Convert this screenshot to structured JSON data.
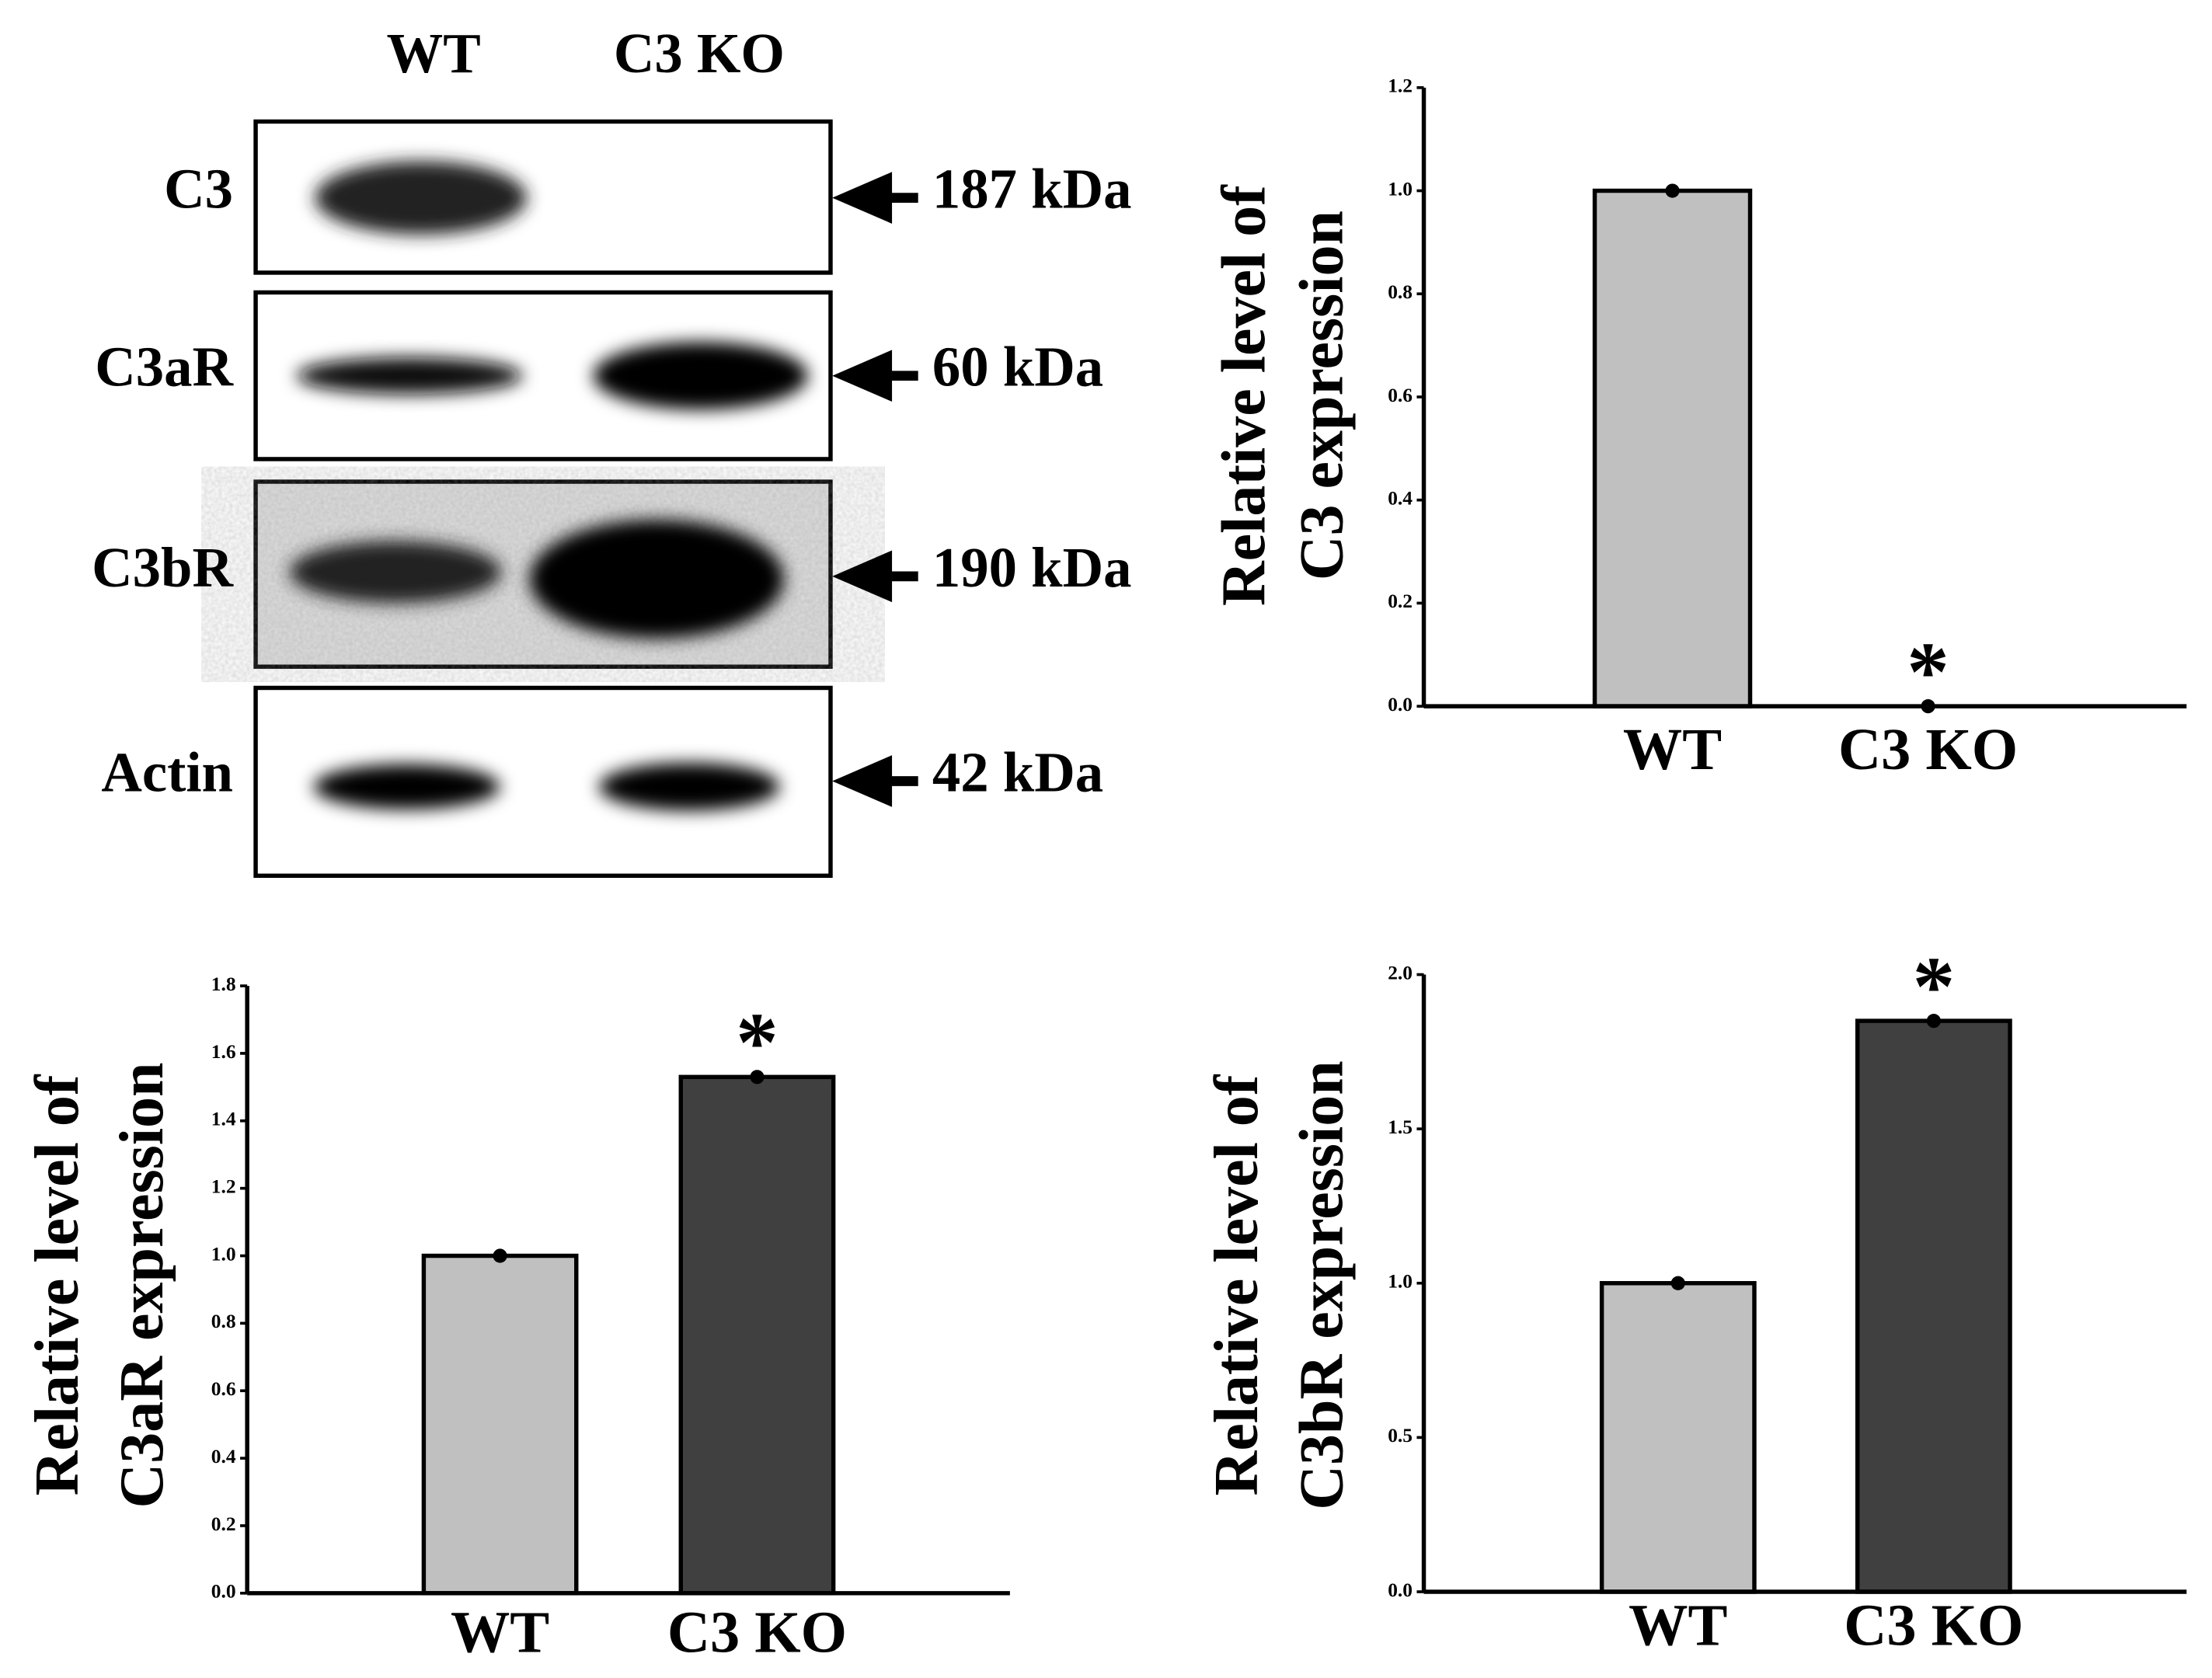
{
  "blot": {
    "lanes": [
      "WT",
      "C3 KO"
    ],
    "rows": [
      {
        "label": "C3",
        "size": "187 kDa"
      },
      {
        "label": "C3aR",
        "size": "60 kDa"
      },
      {
        "label": "C3bR",
        "size": "190 kDa"
      },
      {
        "label": "Actin",
        "size": "42 kDa"
      }
    ]
  },
  "chart_data": [
    {
      "type": "bar",
      "ylabel": [
        "Relative level of",
        "C3 expression"
      ],
      "categories": [
        "WT",
        "C3 KO"
      ],
      "values": [
        1.0,
        0.0
      ],
      "colors": [
        "#c0c0c0",
        "#404040"
      ],
      "annotation": "*",
      "ylim": [
        0,
        1.2
      ],
      "yticks": [
        {
          "value": 0,
          "label": "0.0"
        },
        0.2,
        0.4,
        0.6,
        0.8,
        {
          "value": 1,
          "label": "1.0"
        },
        1.2
      ]
    },
    {
      "type": "bar",
      "ylabel": [
        "Relative level of",
        "C3aR expression"
      ],
      "categories": [
        "WT",
        "C3 KO"
      ],
      "values": [
        1.0,
        1.53
      ],
      "colors": [
        "#c0c0c0",
        "#404040"
      ],
      "annotation": "*",
      "ylim": [
        0,
        1.8
      ],
      "yticks": [
        {
          "value": 0,
          "label": "0.0"
        },
        0.2,
        0.4,
        0.6,
        0.8,
        {
          "value": 1,
          "label": "1.0"
        },
        1.2,
        1.4,
        1.6,
        1.8
      ]
    },
    {
      "type": "bar",
      "ylabel": [
        "Relative level of",
        "C3bR expression"
      ],
      "categories": [
        "WT",
        "C3 KO"
      ],
      "values": [
        1.0,
        1.85
      ],
      "colors": [
        "#c0c0c0",
        "#404040"
      ],
      "annotation": "*",
      "ylim": [
        0,
        2.0
      ],
      "yticks": [
        {
          "value": 0,
          "label": "0.0"
        },
        0.5,
        {
          "value": 1,
          "label": "1.0"
        },
        1.5,
        {
          "value": 2,
          "label": "2.0"
        }
      ]
    }
  ]
}
